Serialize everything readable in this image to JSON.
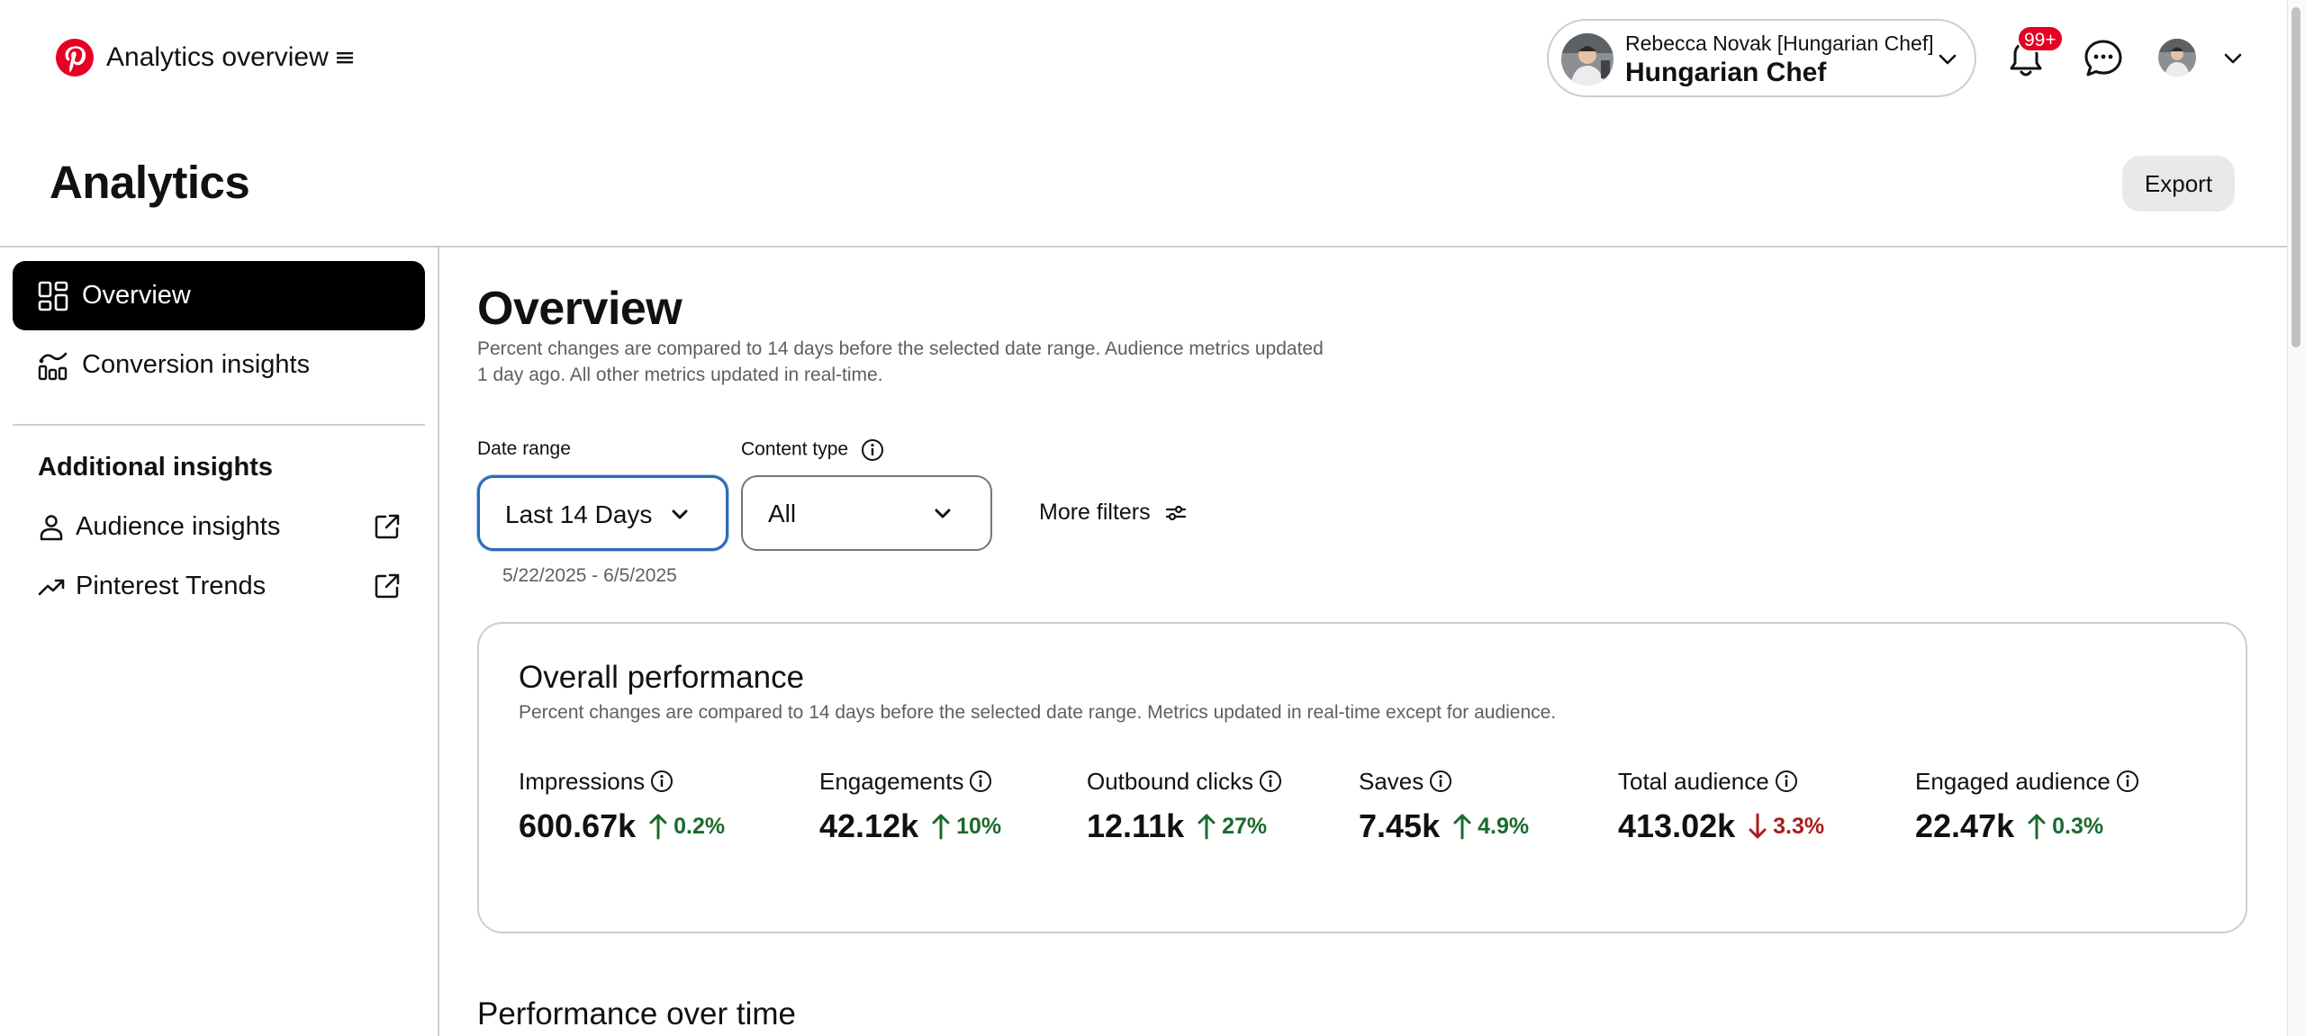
{
  "app": {
    "title": "Analytics overview"
  },
  "account": {
    "line1": "Rebecca Novak [Hungarian Chef]",
    "line2": "Hungarian Chef"
  },
  "notifications": {
    "badge": "99+"
  },
  "header": {
    "title": "Analytics",
    "export_label": "Export"
  },
  "sidebar": {
    "items": [
      {
        "label": "Overview",
        "icon": "grid-icon",
        "active": true
      },
      {
        "label": "Conversion insights",
        "icon": "conversion-chart-icon",
        "active": false
      }
    ],
    "section_title": "Additional insights",
    "external": [
      {
        "label": "Audience insights",
        "icon": "person-icon"
      },
      {
        "label": "Pinterest Trends",
        "icon": "trend-icon"
      }
    ]
  },
  "overview": {
    "title": "Overview",
    "note": "Percent changes are compared to 14 days before the selected date range. Audience metrics updated 1 day ago. All other metrics updated in real-time."
  },
  "filters": {
    "date_range_label": "Date range",
    "date_range_value": "Last 14 Days",
    "date_range_dates": "5/22/2025 - 6/5/2025",
    "content_type_label": "Content type",
    "content_type_value": "All",
    "more_filters_label": "More filters"
  },
  "performance": {
    "title": "Overall performance",
    "note": "Percent changes are compared to 14 days before the selected date range. Metrics updated in real-time except for audience.",
    "metrics": [
      {
        "label": "Impressions",
        "value": "600.67k",
        "change": "0.2%",
        "direction": "up"
      },
      {
        "label": "Engagements",
        "value": "42.12k",
        "change": "10%",
        "direction": "up"
      },
      {
        "label": "Outbound clicks",
        "value": "12.11k",
        "change": "27%",
        "direction": "up"
      },
      {
        "label": "Saves",
        "value": "7.45k",
        "change": "4.9%",
        "direction": "up"
      },
      {
        "label": "Total audience",
        "value": "413.02k",
        "change": "3.3%",
        "direction": "down"
      },
      {
        "label": "Engaged audience",
        "value": "22.47k",
        "change": "0.3%",
        "direction": "up"
      }
    ]
  },
  "performance_over_time": {
    "title": "Performance over time"
  },
  "colors": {
    "brand": "#e60023",
    "up": "#1a6b2b",
    "down": "#a81d1d",
    "focus": "#2b6cb0"
  }
}
